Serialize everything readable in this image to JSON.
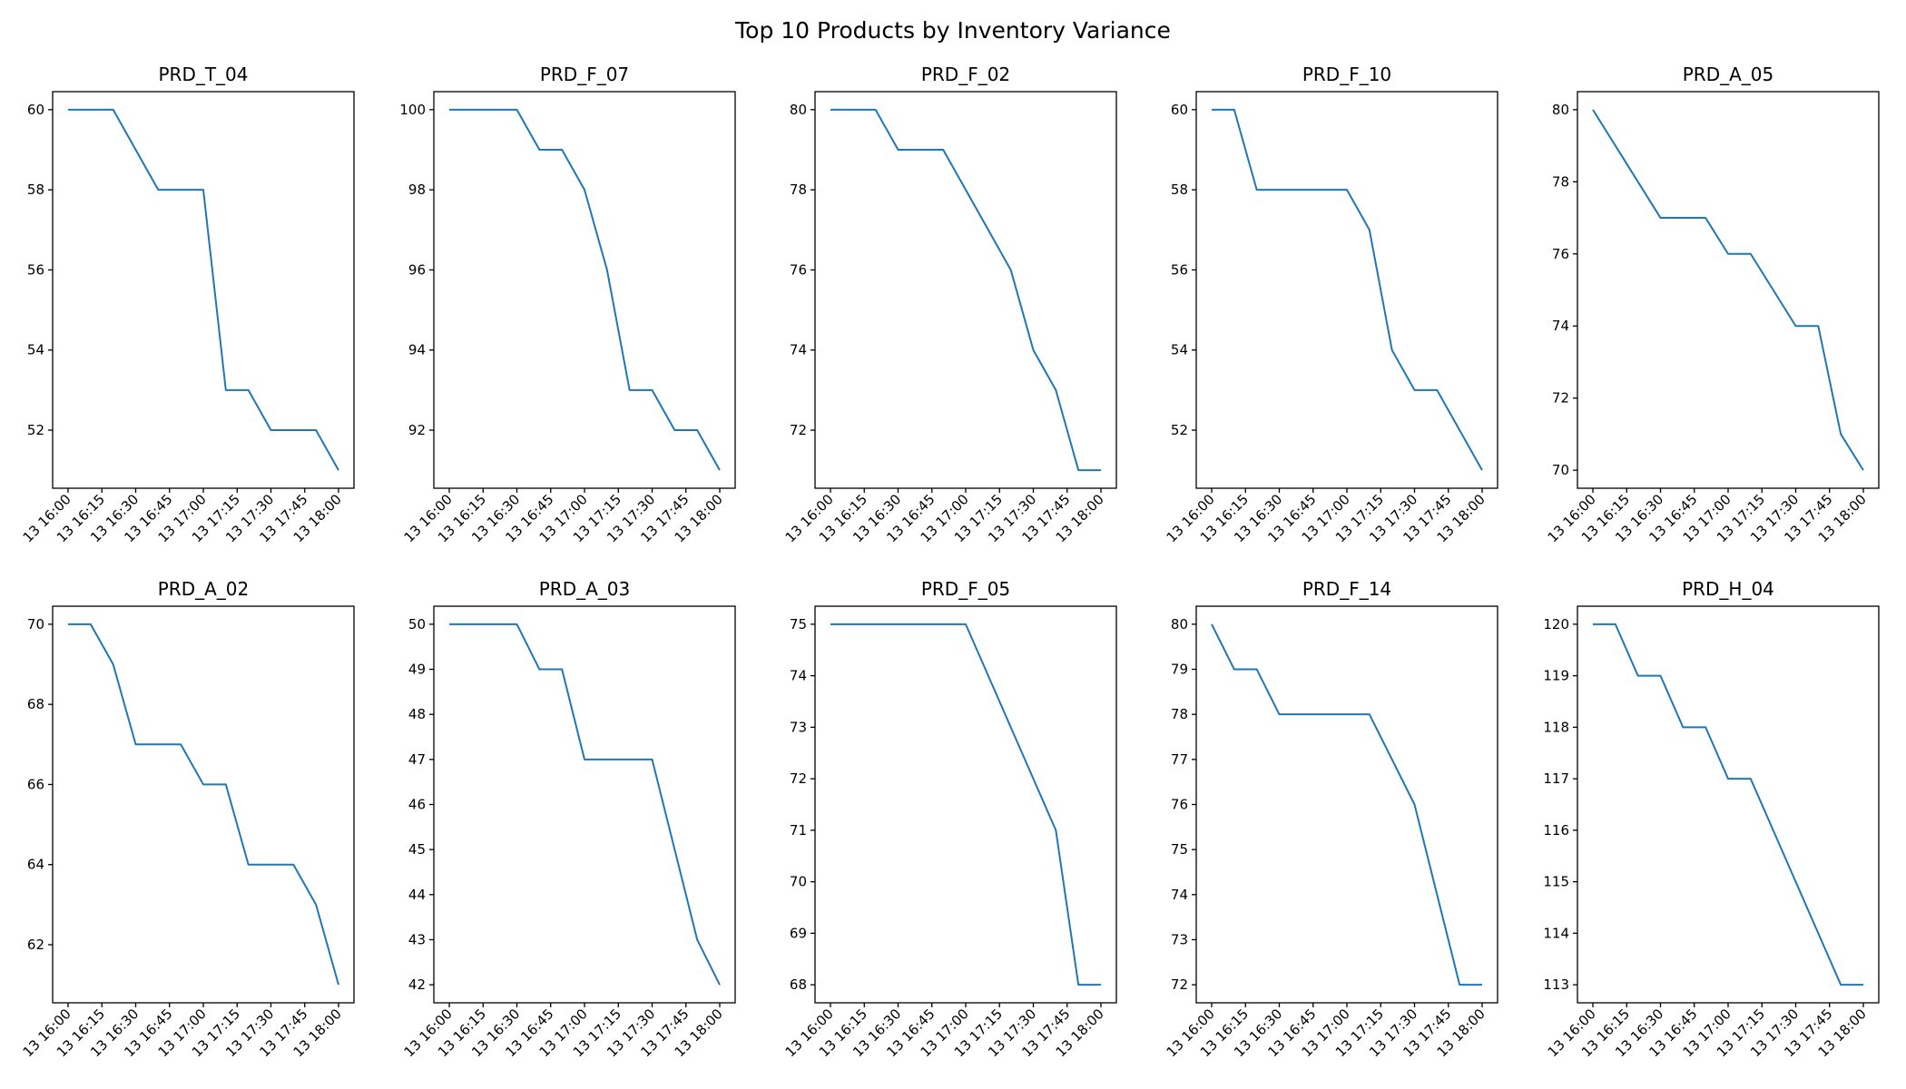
{
  "title": "Top 10 Products by Inventory Variance",
  "colors": {
    "line": "#1f77b4",
    "axes": "#000000",
    "background": "#ffffff"
  },
  "chart_data": [
    {
      "type": "line",
      "title": "PRD_T_04",
      "x_ticks": [
        "13 16:00",
        "13 16:15",
        "13 16:30",
        "13 16:45",
        "13 17:00",
        "13 17:15",
        "13 17:30",
        "13 17:45",
        "13 18:00"
      ],
      "y_ticks": [
        52,
        54,
        56,
        58,
        60
      ],
      "ylim": [
        50.55,
        60.45
      ],
      "x": [
        "16:00",
        "16:10",
        "16:20",
        "16:30",
        "16:40",
        "16:50",
        "17:00",
        "17:10",
        "17:20",
        "17:30",
        "17:40",
        "17:50",
        "18:00"
      ],
      "values": [
        60,
        60,
        60,
        59,
        58,
        58,
        58,
        53,
        53,
        52,
        52,
        52,
        51
      ]
    },
    {
      "type": "line",
      "title": "PRD_F_07",
      "x_ticks": [
        "13 16:00",
        "13 16:15",
        "13 16:30",
        "13 16:45",
        "13 17:00",
        "13 17:15",
        "13 17:30",
        "13 17:45",
        "13 18:00"
      ],
      "y_ticks": [
        92,
        94,
        96,
        98,
        100
      ],
      "ylim": [
        90.55,
        100.45
      ],
      "x": [
        "16:00",
        "16:10",
        "16:20",
        "16:30",
        "16:40",
        "16:50",
        "17:00",
        "17:10",
        "17:20",
        "17:30",
        "17:40",
        "17:50",
        "18:00"
      ],
      "values": [
        100,
        100,
        100,
        100,
        99,
        99,
        98,
        96,
        93,
        93,
        92,
        92,
        91
      ]
    },
    {
      "type": "line",
      "title": "PRD_F_02",
      "x_ticks": [
        "13 16:00",
        "13 16:15",
        "13 16:30",
        "13 16:45",
        "13 17:00",
        "13 17:15",
        "13 17:30",
        "13 17:45",
        "13 18:00"
      ],
      "y_ticks": [
        72,
        74,
        76,
        78,
        80
      ],
      "ylim": [
        70.55,
        80.45
      ],
      "x": [
        "16:00",
        "16:10",
        "16:20",
        "16:30",
        "16:40",
        "16:50",
        "17:00",
        "17:10",
        "17:20",
        "17:30",
        "17:40",
        "17:50",
        "18:00"
      ],
      "values": [
        80,
        80,
        80,
        79,
        79,
        79,
        78,
        77,
        76,
        74,
        73,
        71,
        71
      ]
    },
    {
      "type": "line",
      "title": "PRD_F_10",
      "x_ticks": [
        "13 16:00",
        "13 16:15",
        "13 16:30",
        "13 16:45",
        "13 17:00",
        "13 17:15",
        "13 17:30",
        "13 17:45",
        "13 18:00"
      ],
      "y_ticks": [
        52,
        54,
        56,
        58,
        60
      ],
      "ylim": [
        50.55,
        60.45
      ],
      "x": [
        "16:00",
        "16:10",
        "16:20",
        "16:30",
        "16:40",
        "16:50",
        "17:00",
        "17:10",
        "17:20",
        "17:30",
        "17:40",
        "17:50",
        "18:00"
      ],
      "values": [
        60,
        60,
        58,
        58,
        58,
        58,
        58,
        57,
        54,
        53,
        53,
        52,
        51
      ]
    },
    {
      "type": "line",
      "title": "PRD_A_05",
      "x_ticks": [
        "13 16:00",
        "13 16:15",
        "13 16:30",
        "13 16:45",
        "13 17:00",
        "13 17:15",
        "13 17:30",
        "13 17:45",
        "13 18:00"
      ],
      "y_ticks": [
        70,
        72,
        74,
        76,
        78,
        80
      ],
      "ylim": [
        69.5,
        80.5
      ],
      "x": [
        "16:00",
        "16:10",
        "16:20",
        "16:30",
        "16:40",
        "16:50",
        "17:00",
        "17:10",
        "17:20",
        "17:30",
        "17:40",
        "17:50",
        "18:00"
      ],
      "values": [
        80,
        79,
        78,
        77,
        77,
        77,
        76,
        76,
        75,
        74,
        74,
        71,
        70
      ]
    },
    {
      "type": "line",
      "title": "PRD_A_02",
      "x_ticks": [
        "13 16:00",
        "13 16:15",
        "13 16:30",
        "13 16:45",
        "13 17:00",
        "13 17:15",
        "13 17:30",
        "13 17:45",
        "13 18:00"
      ],
      "y_ticks": [
        62,
        64,
        66,
        68,
        70
      ],
      "ylim": [
        60.55,
        70.45
      ],
      "x": [
        "16:00",
        "16:10",
        "16:20",
        "16:30",
        "16:40",
        "16:50",
        "17:00",
        "17:10",
        "17:20",
        "17:30",
        "17:40",
        "17:50",
        "18:00"
      ],
      "values": [
        70,
        70,
        69,
        67,
        67,
        67,
        66,
        66,
        64,
        64,
        64,
        63,
        61
      ]
    },
    {
      "type": "line",
      "title": "PRD_A_03",
      "x_ticks": [
        "13 16:00",
        "13 16:15",
        "13 16:30",
        "13 16:45",
        "13 17:00",
        "13 17:15",
        "13 17:30",
        "13 17:45",
        "13 18:00"
      ],
      "y_ticks": [
        42,
        43,
        44,
        45,
        46,
        47,
        48,
        49,
        50
      ],
      "ylim": [
        41.6,
        50.4
      ],
      "x": [
        "16:00",
        "16:10",
        "16:20",
        "16:30",
        "16:40",
        "16:50",
        "17:00",
        "17:10",
        "17:20",
        "17:30",
        "17:40",
        "17:50",
        "18:00"
      ],
      "values": [
        50,
        50,
        50,
        50,
        49,
        49,
        47,
        47,
        47,
        47,
        45,
        43,
        42
      ]
    },
    {
      "type": "line",
      "title": "PRD_F_05",
      "x_ticks": [
        "13 16:00",
        "13 16:15",
        "13 16:30",
        "13 16:45",
        "13 17:00",
        "13 17:15",
        "13 17:30",
        "13 17:45",
        "13 18:00"
      ],
      "y_ticks": [
        68,
        69,
        70,
        71,
        72,
        73,
        74,
        75
      ],
      "ylim": [
        67.65,
        75.35
      ],
      "x": [
        "16:00",
        "16:10",
        "16:20",
        "16:30",
        "16:40",
        "16:50",
        "17:00",
        "17:10",
        "17:20",
        "17:30",
        "17:40",
        "17:50",
        "18:00"
      ],
      "values": [
        75,
        75,
        75,
        75,
        75,
        75,
        75,
        74,
        73,
        72,
        71,
        68,
        68
      ]
    },
    {
      "type": "line",
      "title": "PRD_F_14",
      "x_ticks": [
        "13 16:00",
        "13 16:15",
        "13 16:30",
        "13 16:45",
        "13 17:00",
        "13 17:15",
        "13 17:30",
        "13 17:45",
        "13 18:00"
      ],
      "y_ticks": [
        72,
        73,
        74,
        75,
        76,
        77,
        78,
        79,
        80
      ],
      "ylim": [
        71.6,
        80.4
      ],
      "x": [
        "16:00",
        "16:10",
        "16:20",
        "16:30",
        "16:40",
        "16:50",
        "17:00",
        "17:10",
        "17:20",
        "17:30",
        "17:40",
        "17:50",
        "18:00"
      ],
      "values": [
        80,
        79,
        79,
        78,
        78,
        78,
        78,
        78,
        77,
        76,
        74,
        72,
        72
      ]
    },
    {
      "type": "line",
      "title": "PRD_H_04",
      "x_ticks": [
        "13 16:00",
        "13 16:15",
        "13 16:30",
        "13 16:45",
        "13 17:00",
        "13 17:15",
        "13 17:30",
        "13 17:45",
        "13 18:00"
      ],
      "y_ticks": [
        113,
        114,
        115,
        116,
        117,
        118,
        119,
        120
      ],
      "ylim": [
        112.65,
        120.35
      ],
      "x": [
        "16:00",
        "16:10",
        "16:20",
        "16:30",
        "16:40",
        "16:50",
        "17:00",
        "17:10",
        "17:20",
        "17:30",
        "17:40",
        "17:50",
        "18:00"
      ],
      "values": [
        120,
        120,
        119,
        119,
        118,
        118,
        117,
        117,
        116,
        115,
        114,
        113,
        113
      ]
    }
  ]
}
